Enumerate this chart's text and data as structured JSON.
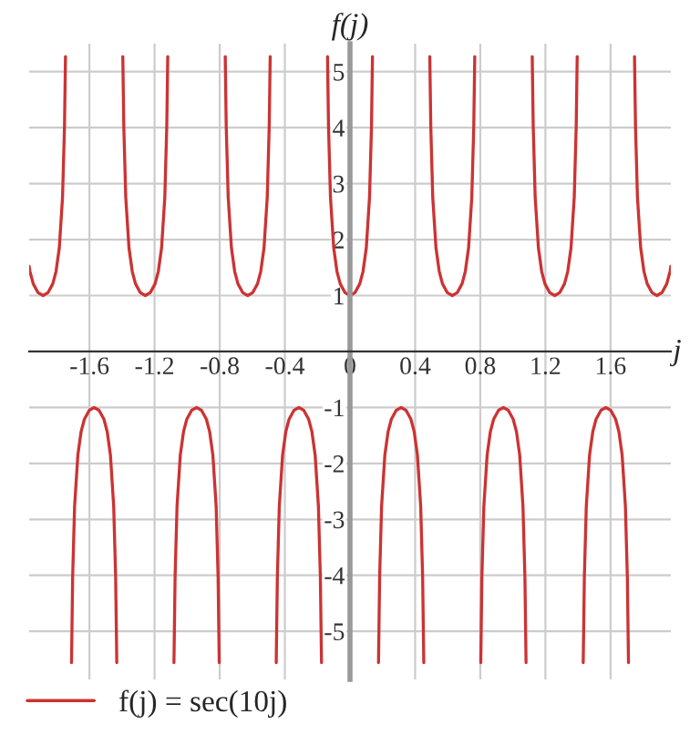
{
  "chart_data": {
    "type": "line",
    "xlabel": "j",
    "ylabel": "f(j)",
    "x": [
      -1.97,
      -1.965,
      -1.945,
      -1.915,
      -1.885,
      -1.855,
      -1.825,
      -1.805,
      -1.785,
      -1.765,
      -1.753,
      -1.747,
      -1.728,
      -1.71,
      -1.703,
      -1.691,
      -1.671,
      -1.651,
      -1.631,
      -1.601,
      -1.571,
      -1.541,
      -1.511,
      -1.491,
      -1.471,
      -1.451,
      -1.439,
      -1.432,
      -1.414,
      -1.395,
      -1.389,
      -1.377,
      -1.357,
      -1.337,
      -1.317,
      -1.287,
      -1.257,
      -1.227,
      -1.197,
      -1.177,
      -1.157,
      -1.137,
      -1.125,
      -1.119,
      -1.1,
      -1.081,
      -1.074,
      -1.062,
      -1.042,
      -1.022,
      -1.002,
      -0.972,
      -0.942,
      -0.912,
      -0.882,
      -0.862,
      -0.842,
      -0.822,
      -0.81,
      -0.803,
      -0.785,
      -0.766,
      -0.76,
      -0.748,
      -0.728,
      -0.708,
      -0.688,
      -0.658,
      -0.628,
      -0.598,
      -0.568,
      -0.548,
      -0.528,
      -0.508,
      -0.496,
      -0.49,
      -0.471,
      -0.453,
      -0.446,
      -0.434,
      -0.414,
      -0.394,
      -0.374,
      -0.344,
      -0.314,
      -0.284,
      -0.254,
      -0.234,
      -0.214,
      -0.194,
      -0.182,
      -0.175,
      -0.157,
      -0.138,
      -0.132,
      -0.12,
      -0.1,
      -0.08,
      -0.06,
      -0.03,
      0,
      0.03,
      0.06,
      0.08,
      0.1,
      0.12,
      0.132,
      0.138,
      0.157,
      0.175,
      0.182,
      0.194,
      0.214,
      0.234,
      0.254,
      0.284,
      0.314,
      0.344,
      0.374,
      0.394,
      0.414,
      0.434,
      0.446,
      0.453,
      0.471,
      0.49,
      0.496,
      0.508,
      0.528,
      0.548,
      0.568,
      0.598,
      0.628,
      0.658,
      0.688,
      0.708,
      0.728,
      0.748,
      0.76,
      0.766,
      0.785,
      0.803,
      0.81,
      0.822,
      0.842,
      0.862,
      0.882,
      0.912,
      0.942,
      0.972,
      1.002,
      1.022,
      1.042,
      1.062,
      1.074,
      1.081,
      1.1,
      1.119,
      1.125,
      1.137,
      1.157,
      1.177,
      1.197,
      1.227,
      1.257,
      1.287,
      1.317,
      1.337,
      1.357,
      1.377,
      1.389,
      1.395,
      1.414,
      1.432,
      1.439,
      1.451,
      1.471,
      1.491,
      1.511,
      1.541,
      1.571,
      1.601,
      1.631,
      1.651,
      1.671,
      1.691,
      1.703,
      1.71,
      1.728,
      1.747,
      1.753,
      1.765,
      1.785,
      1.805,
      1.825,
      1.855,
      1.885,
      1.915,
      1.945,
      1.965,
      1.97
    ],
    "series": [
      {
        "name": "f(j) = sec(10j)",
        "color": "#cc3333",
        "values": [
          1.52,
          1.43,
          1.21,
          1.05,
          1,
          1.05,
          1.21,
          1.43,
          1.85,
          2.76,
          4.03,
          5.27,
          null,
          -5.56,
          -4.03,
          -2.76,
          -1.85,
          -1.43,
          -1.21,
          -1.05,
          -1,
          -1.05,
          -1.21,
          -1.43,
          -1.85,
          -2.76,
          -4.03,
          -5.56,
          null,
          5.27,
          4.03,
          2.76,
          1.85,
          1.43,
          1.21,
          1.05,
          1,
          1.05,
          1.21,
          1.43,
          1.85,
          2.76,
          4.03,
          5.27,
          null,
          -5.56,
          -4.03,
          -2.76,
          -1.85,
          -1.43,
          -1.21,
          -1.05,
          -1,
          -1.05,
          -1.21,
          -1.43,
          -1.85,
          -2.76,
          -4.03,
          -5.56,
          null,
          5.27,
          4.03,
          2.76,
          1.85,
          1.43,
          1.21,
          1.05,
          1,
          1.05,
          1.21,
          1.43,
          1.85,
          2.76,
          4.03,
          5.27,
          null,
          -5.56,
          -4.03,
          -2.76,
          -1.85,
          -1.43,
          -1.21,
          -1.05,
          -1,
          -1.05,
          -1.21,
          -1.43,
          -1.85,
          -2.76,
          -4.03,
          -5.56,
          null,
          5.27,
          4.03,
          2.76,
          1.85,
          1.43,
          1.21,
          1.05,
          1,
          1.05,
          1.21,
          1.43,
          1.85,
          2.76,
          4.03,
          5.27,
          null,
          -5.56,
          -4.03,
          -2.76,
          -1.85,
          -1.43,
          -1.21,
          -1.05,
          -1,
          -1.05,
          -1.21,
          -1.43,
          -1.85,
          -2.76,
          -4.03,
          -5.56,
          null,
          5.27,
          4.03,
          2.76,
          1.85,
          1.43,
          1.21,
          1.05,
          1,
          1.05,
          1.21,
          1.43,
          1.85,
          2.76,
          4.03,
          5.27,
          null,
          -5.56,
          -4.03,
          -2.76,
          -1.85,
          -1.43,
          -1.21,
          -1.05,
          -1,
          -1.05,
          -1.21,
          -1.43,
          -1.85,
          -2.76,
          -4.03,
          -5.56,
          null,
          5.27,
          4.03,
          2.76,
          1.85,
          1.43,
          1.21,
          1.05,
          1,
          1.05,
          1.21,
          1.43,
          1.85,
          2.76,
          4.03,
          5.27,
          null,
          -5.56,
          -4.03,
          -2.76,
          -1.85,
          -1.43,
          -1.21,
          -1.05,
          -1,
          -1.05,
          -1.21,
          -1.43,
          -1.85,
          -2.76,
          -4.03,
          -5.56,
          null,
          5.27,
          4.03,
          2.76,
          1.85,
          1.43,
          1.21,
          1.05,
          1,
          1.05,
          1.21,
          1.43,
          1.52
        ]
      }
    ],
    "xlim": [
      -1.97,
      1.97
    ],
    "ylim": [
      -5.86,
      5.5
    ],
    "xticks": [
      -1.6,
      -1.2,
      -0.8,
      -0.4,
      0,
      0.4,
      0.8,
      1.2,
      1.6
    ],
    "yticks": [
      -5,
      -4,
      -3,
      -2,
      -1,
      1,
      2,
      3,
      4,
      5
    ],
    "grid": true,
    "legend": "bottom",
    "marker": "none",
    "line_style": "solid"
  }
}
